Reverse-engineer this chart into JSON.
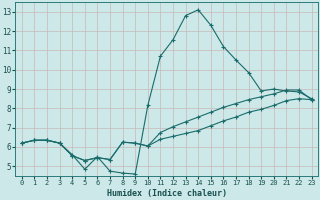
{
  "xlabel": "Humidex (Indice chaleur)",
  "ylabel": "",
  "xlim": [
    -0.5,
    23.5
  ],
  "ylim": [
    4.5,
    13.5
  ],
  "xticks": [
    0,
    1,
    2,
    3,
    4,
    5,
    6,
    7,
    8,
    9,
    10,
    11,
    12,
    13,
    14,
    15,
    16,
    17,
    18,
    19,
    20,
    21,
    22,
    23
  ],
  "yticks": [
    5,
    6,
    7,
    8,
    9,
    10,
    11,
    12,
    13
  ],
  "bg_color": "#cce8e8",
  "grid_color": "#c8b8b8",
  "line_color": "#1a6b6b",
  "axis_color": "#2a7a7a",
  "label_color": "#1a5050",
  "line1_x": [
    0,
    1,
    2,
    3,
    4,
    5,
    6,
    7,
    8,
    9,
    10,
    11,
    12,
    13,
    14,
    15,
    16,
    17,
    18,
    19,
    20,
    21,
    22,
    23
  ],
  "line1_y": [
    6.2,
    6.35,
    6.35,
    6.2,
    5.6,
    4.85,
    5.5,
    4.75,
    4.65,
    4.6,
    8.15,
    10.7,
    11.55,
    12.8,
    13.1,
    12.3,
    11.2,
    10.5,
    9.85,
    8.9,
    9.0,
    8.9,
    8.85,
    8.5
  ],
  "line2_x": [
    0,
    1,
    2,
    3,
    4,
    5,
    6,
    7,
    8,
    9,
    10,
    11,
    12,
    13,
    14,
    15,
    16,
    17,
    18,
    19,
    20,
    21,
    22,
    23
  ],
  "line2_y": [
    6.2,
    6.35,
    6.35,
    6.2,
    5.55,
    5.3,
    5.45,
    5.35,
    6.25,
    6.2,
    6.05,
    6.4,
    6.55,
    6.7,
    6.85,
    7.1,
    7.35,
    7.55,
    7.8,
    7.95,
    8.15,
    8.4,
    8.5,
    8.45
  ],
  "line3_x": [
    0,
    1,
    2,
    3,
    4,
    5,
    6,
    7,
    8,
    9,
    10,
    11,
    12,
    13,
    14,
    15,
    16,
    17,
    18,
    19,
    20,
    21,
    22,
    23
  ],
  "line3_y": [
    6.2,
    6.35,
    6.35,
    6.2,
    5.55,
    5.3,
    5.45,
    5.35,
    6.25,
    6.2,
    6.05,
    6.75,
    7.05,
    7.3,
    7.55,
    7.8,
    8.05,
    8.25,
    8.45,
    8.6,
    8.75,
    8.95,
    8.95,
    8.45
  ]
}
